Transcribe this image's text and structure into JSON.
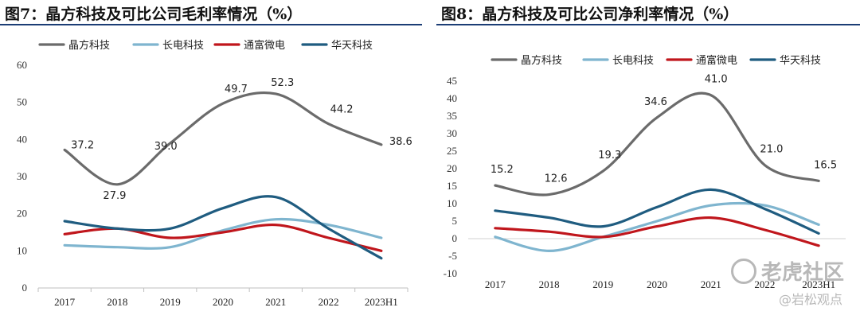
{
  "watermark": {
    "brand": "老虎社区",
    "author": "@岩松观点"
  },
  "chart_data": [
    {
      "type": "line",
      "title": "图7：晶方科技及可比公司毛利率情况（%）",
      "categories": [
        "2017",
        "2018",
        "2019",
        "2020",
        "2021",
        "2022",
        "2023H1"
      ],
      "ylim": [
        0,
        60
      ],
      "yticks": [
        0,
        10,
        20,
        30,
        40,
        50,
        60
      ],
      "legend_position": "top",
      "grid": false,
      "series": [
        {
          "name": "晶方科技",
          "color": "#6b6b6b",
          "values": [
            37.2,
            27.9,
            39.0,
            49.7,
            52.3,
            44.2,
            38.6
          ],
          "labels": [
            "37.2",
            "27.9",
            "39.0",
            "49.7",
            "52.3",
            "44.2",
            "38.6"
          ]
        },
        {
          "name": "长电科技",
          "color": "#7fb5cf",
          "values": [
            11.5,
            11.0,
            11.0,
            15.5,
            18.5,
            17.0,
            13.5
          ]
        },
        {
          "name": "通富微电",
          "color": "#c0161c",
          "values": [
            14.5,
            16.0,
            13.5,
            15.0,
            17.0,
            13.5,
            10.0
          ]
        },
        {
          "name": "华天科技",
          "color": "#1f5c80",
          "values": [
            18.0,
            16.0,
            16.0,
            21.5,
            24.5,
            16.0,
            8.0
          ]
        }
      ]
    },
    {
      "type": "line",
      "title": "图8：晶方科技及可比公司净利率情况（%）",
      "categories": [
        "2017",
        "2018",
        "2019",
        "2020",
        "2021",
        "2022",
        "2023H1"
      ],
      "ylim": [
        -10,
        45
      ],
      "yticks": [
        -10,
        -5,
        0,
        5,
        10,
        15,
        20,
        25,
        30,
        35,
        40,
        45
      ],
      "legend_position": "top",
      "grid": false,
      "series": [
        {
          "name": "晶方科技",
          "color": "#6b6b6b",
          "values": [
            15.2,
            12.6,
            19.3,
            34.6,
            41.0,
            21.0,
            16.5
          ],
          "labels": [
            "15.2",
            "12.6",
            "19.3",
            "34.6",
            "41.0",
            "21.0",
            "16.5"
          ]
        },
        {
          "name": "长电科技",
          "color": "#7fb5cf",
          "values": [
            0.5,
            -3.5,
            0.5,
            5.0,
            9.5,
            9.5,
            4.0
          ]
        },
        {
          "name": "通富微电",
          "color": "#c0161c",
          "values": [
            3.0,
            2.0,
            0.5,
            3.5,
            6.0,
            2.5,
            -2.0
          ]
        },
        {
          "name": "华天科技",
          "color": "#1f5c80",
          "values": [
            8.0,
            6.0,
            3.5,
            9.0,
            14.0,
            8.5,
            1.5
          ]
        }
      ]
    }
  ]
}
